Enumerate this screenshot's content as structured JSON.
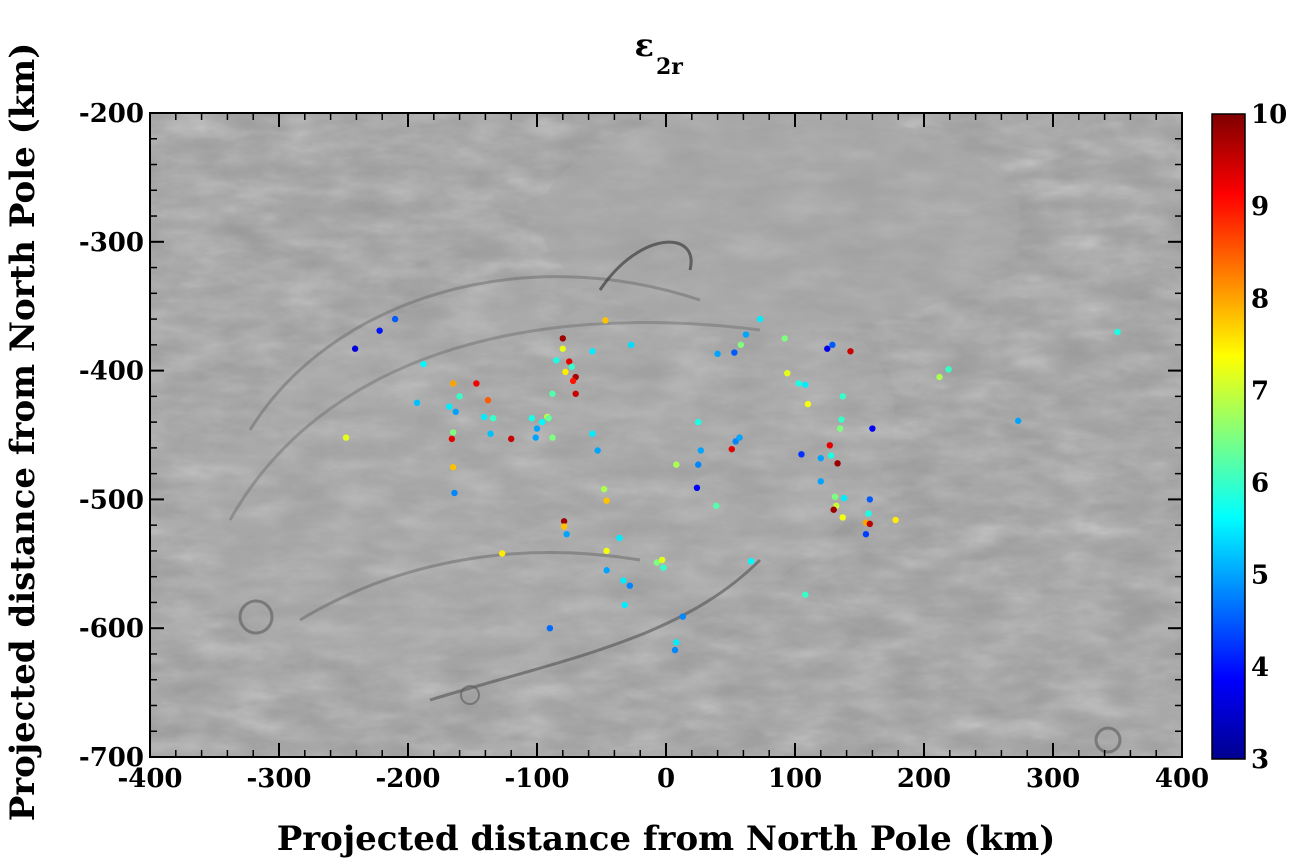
{
  "chart_data": {
    "type": "scatter",
    "title": "ε",
    "title_subscript": "2r",
    "xlabel": "Projected distance from North Pole (km)",
    "ylabel": "Projected distance from North Pole (km)",
    "xlim": [
      -400,
      400
    ],
    "ylim": [
      -700,
      -200
    ],
    "xticks": [
      -400,
      -300,
      -200,
      -100,
      0,
      100,
      200,
      300,
      400
    ],
    "yticks": [
      -700,
      -600,
      -500,
      -400,
      -300,
      -200
    ],
    "grid": false,
    "background": "grayscale shaded-relief terrain image",
    "colorbar": {
      "range": [
        3,
        10
      ],
      "ticks": [
        3,
        4,
        5,
        6,
        7,
        8,
        9,
        10
      ],
      "colormap": "jet",
      "colors": [
        "#00008f",
        "#0000ff",
        "#007fff",
        "#00ffff",
        "#7fff7f",
        "#ffff00",
        "#ff7f00",
        "#ff0000",
        "#7f0000"
      ]
    },
    "points": [
      {
        "x": -241,
        "y": -383,
        "v": 3.6
      },
      {
        "x": -222,
        "y": -369,
        "v": 4.0
      },
      {
        "x": -210,
        "y": -360,
        "v": 4.5
      },
      {
        "x": -188,
        "y": -395,
        "v": 5.6
      },
      {
        "x": -193,
        "y": -425,
        "v": 5.2
      },
      {
        "x": -248,
        "y": -452,
        "v": 7.2
      },
      {
        "x": -165,
        "y": -410,
        "v": 8.0
      },
      {
        "x": -160,
        "y": -420,
        "v": 6.0
      },
      {
        "x": -168,
        "y": -428,
        "v": 5.5
      },
      {
        "x": -163,
        "y": -432,
        "v": 5.0
      },
      {
        "x": -165,
        "y": -448,
        "v": 6.5
      },
      {
        "x": -166,
        "y": -453,
        "v": 9.3
      },
      {
        "x": -165,
        "y": -475,
        "v": 7.8
      },
      {
        "x": -164,
        "y": -495,
        "v": 4.8
      },
      {
        "x": -147,
        "y": -410,
        "v": 9.2
      },
      {
        "x": -138,
        "y": -423,
        "v": 8.5
      },
      {
        "x": -134,
        "y": -437,
        "v": 6.0
      },
      {
        "x": -141,
        "y": -436,
        "v": 5.5
      },
      {
        "x": -136,
        "y": -449,
        "v": 5.2
      },
      {
        "x": -120,
        "y": -453,
        "v": 9.5
      },
      {
        "x": -127,
        "y": -542,
        "v": 7.5
      },
      {
        "x": -85,
        "y": -392,
        "v": 5.8
      },
      {
        "x": -80,
        "y": -375,
        "v": 9.8
      },
      {
        "x": -80,
        "y": -383,
        "v": 7.2
      },
      {
        "x": -75,
        "y": -393,
        "v": 9.3
      },
      {
        "x": -78,
        "y": -401,
        "v": 7.5
      },
      {
        "x": -70,
        "y": -405,
        "v": 9.7
      },
      {
        "x": -72,
        "y": -408,
        "v": 9.0
      },
      {
        "x": -70,
        "y": -418,
        "v": 9.5
      },
      {
        "x": -73,
        "y": -397,
        "v": 6.0
      },
      {
        "x": -88,
        "y": -418,
        "v": 6.2
      },
      {
        "x": -92,
        "y": -436,
        "v": 7.0
      },
      {
        "x": -91,
        "y": -437,
        "v": 6.3
      },
      {
        "x": -96,
        "y": -440,
        "v": 5.6
      },
      {
        "x": -100,
        "y": -445,
        "v": 5.0
      },
      {
        "x": -104,
        "y": -437,
        "v": 5.8
      },
      {
        "x": -101,
        "y": -452,
        "v": 5.0
      },
      {
        "x": -88,
        "y": -452,
        "v": 6.5
      },
      {
        "x": -79,
        "y": -517,
        "v": 9.8
      },
      {
        "x": -79,
        "y": -521,
        "v": 7.8
      },
      {
        "x": -77,
        "y": -527,
        "v": 5.0
      },
      {
        "x": -57,
        "y": -385,
        "v": 5.5
      },
      {
        "x": -57,
        "y": -449,
        "v": 5.5
      },
      {
        "x": -53,
        "y": -462,
        "v": 5.0
      },
      {
        "x": -47,
        "y": -361,
        "v": 7.8
      },
      {
        "x": -27,
        "y": -380,
        "v": 5.4
      },
      {
        "x": -48,
        "y": -492,
        "v": 6.8
      },
      {
        "x": -46,
        "y": -501,
        "v": 7.8
      },
      {
        "x": -46,
        "y": -540,
        "v": 7.3
      },
      {
        "x": -46,
        "y": -555,
        "v": 5.0
      },
      {
        "x": -36,
        "y": -530,
        "v": 5.5
      },
      {
        "x": -33,
        "y": -563,
        "v": 5.5
      },
      {
        "x": -28,
        "y": -567,
        "v": 4.8
      },
      {
        "x": -32,
        "y": -582,
        "v": 5.5
      },
      {
        "x": -90,
        "y": -600,
        "v": 4.6
      },
      {
        "x": -7,
        "y": -549,
        "v": 6.5
      },
      {
        "x": -3,
        "y": -547,
        "v": 7.2
      },
      {
        "x": -2,
        "y": -553,
        "v": 6.0
      },
      {
        "x": 8,
        "y": -473,
        "v": 6.8
      },
      {
        "x": 25,
        "y": -440,
        "v": 5.8
      },
      {
        "x": 27,
        "y": -462,
        "v": 5.0
      },
      {
        "x": 25,
        "y": -473,
        "v": 4.8
      },
      {
        "x": 24,
        "y": -491,
        "v": 3.8
      },
      {
        "x": 39,
        "y": -505,
        "v": 6.2
      },
      {
        "x": 13,
        "y": -591,
        "v": 4.8
      },
      {
        "x": 8,
        "y": -611,
        "v": 5.5
      },
      {
        "x": 7,
        "y": -617,
        "v": 4.8
      },
      {
        "x": 40,
        "y": -387,
        "v": 5.0
      },
      {
        "x": 53,
        "y": -386,
        "v": 4.5
      },
      {
        "x": 58,
        "y": -380,
        "v": 6.5
      },
      {
        "x": 62,
        "y": -372,
        "v": 5.0
      },
      {
        "x": 73,
        "y": -360,
        "v": 5.5
      },
      {
        "x": 54,
        "y": -455,
        "v": 4.8
      },
      {
        "x": 57,
        "y": -452,
        "v": 5.0
      },
      {
        "x": 51,
        "y": -461,
        "v": 9.3
      },
      {
        "x": 66,
        "y": -548,
        "v": 5.6
      },
      {
        "x": 92,
        "y": -375,
        "v": 6.5
      },
      {
        "x": 94,
        "y": -402,
        "v": 7.2
      },
      {
        "x": 103,
        "y": -410,
        "v": 5.8
      },
      {
        "x": 108,
        "y": -411,
        "v": 5.5
      },
      {
        "x": 110,
        "y": -426,
        "v": 7.3
      },
      {
        "x": 105,
        "y": -465,
        "v": 4.2
      },
      {
        "x": 108,
        "y": -574,
        "v": 6.0
      },
      {
        "x": 125,
        "y": -383,
        "v": 3.7
      },
      {
        "x": 129,
        "y": -380,
        "v": 4.5
      },
      {
        "x": 143,
        "y": -385,
        "v": 9.5
      },
      {
        "x": 137,
        "y": -420,
        "v": 6.0
      },
      {
        "x": 136,
        "y": -438,
        "v": 6.0
      },
      {
        "x": 135,
        "y": -445,
        "v": 6.5
      },
      {
        "x": 127,
        "y": -458,
        "v": 9.3
      },
      {
        "x": 120,
        "y": -468,
        "v": 5.0
      },
      {
        "x": 128,
        "y": -466,
        "v": 5.8
      },
      {
        "x": 133,
        "y": -472,
        "v": 9.8
      },
      {
        "x": 120,
        "y": -486,
        "v": 5.0
      },
      {
        "x": 131,
        "y": -498,
        "v": 6.5
      },
      {
        "x": 132,
        "y": -505,
        "v": 7.0
      },
      {
        "x": 130,
        "y": -508,
        "v": 9.8
      },
      {
        "x": 137,
        "y": -514,
        "v": 7.3
      },
      {
        "x": 138,
        "y": -499,
        "v": 5.5
      },
      {
        "x": 160,
        "y": -445,
        "v": 3.8
      },
      {
        "x": 158,
        "y": -500,
        "v": 4.5
      },
      {
        "x": 157,
        "y": -511,
        "v": 5.8
      },
      {
        "x": 155,
        "y": -518,
        "v": 8.0
      },
      {
        "x": 158,
        "y": -519,
        "v": 9.6
      },
      {
        "x": 155,
        "y": -527,
        "v": 4.3
      },
      {
        "x": 178,
        "y": -516,
        "v": 7.5
      },
      {
        "x": 212,
        "y": -405,
        "v": 6.8
      },
      {
        "x": 219,
        "y": -399,
        "v": 6.0
      },
      {
        "x": 273,
        "y": -439,
        "v": 5.0
      },
      {
        "x": 350,
        "y": -370,
        "v": 5.8
      }
    ]
  }
}
